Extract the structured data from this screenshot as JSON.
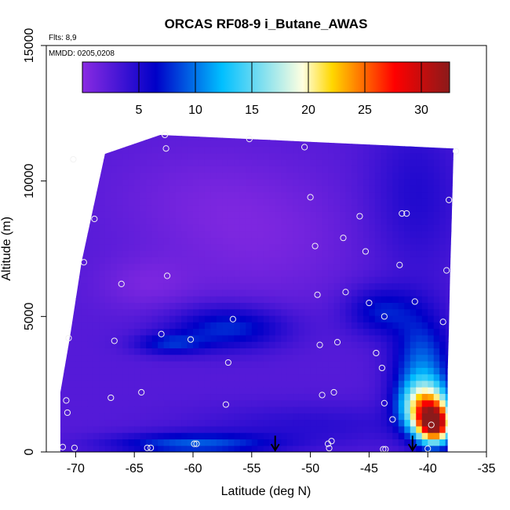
{
  "chart_data": {
    "type": "heatmap",
    "title": "ORCAS RF08-9 i_Butane_AWAS",
    "annotations": {
      "flights": "Flts: 8,9",
      "dates": "MMDD: 0205,0208"
    },
    "xlabel": "Latitude (deg N)",
    "ylabel": "Altitude (m)",
    "xlim": [
      -72.5,
      -35
    ],
    "ylim": [
      0,
      15000
    ],
    "x_ticks": [
      -70,
      -65,
      -60,
      -55,
      -50,
      -45,
      -40,
      -35
    ],
    "x_tick_labels": [
      "-70",
      "-65",
      "-60",
      "-55",
      "-50",
      "-45",
      "-40",
      "-35"
    ],
    "y_ticks": [
      0,
      5000,
      10000,
      15000
    ],
    "y_tick_labels": [
      "0",
      "5000",
      "10000",
      "15000"
    ],
    "colorbar": {
      "range": [
        0,
        32.5
      ],
      "ticks": [
        5,
        10,
        15,
        20,
        25,
        30
      ],
      "tick_labels": [
        "5",
        "10",
        "15",
        "20",
        "25",
        "30"
      ],
      "colors": [
        "#8a2be2",
        "#0000c8",
        "#00bfff",
        "#ffffe0",
        "#ffd700",
        "#ff0000",
        "#8b1a1a"
      ],
      "stops": [
        0,
        0.2,
        0.38,
        0.6,
        0.68,
        0.85,
        1.0
      ]
    },
    "field": {
      "coverage": {
        "top_left": [
          -71.3,
          11700
        ],
        "top_right": [
          -37.8,
          11200
        ],
        "bottom_right": [
          -38.3,
          0
        ],
        "bottom_left": [
          -71.3,
          0
        ],
        "left_edge": [
          [
            -71.3,
            0
          ],
          [
            -71.3,
            2200
          ],
          [
            -70.5,
            4200
          ],
          [
            -69.5,
            7000
          ],
          [
            -68.5,
            9000
          ],
          [
            -67.5,
            11000
          ],
          [
            -62.8,
            11700
          ]
        ],
        "right_edge": [
          [
            -37.8,
            11200
          ],
          [
            -37.9,
            9500
          ],
          [
            -38.1,
            6500
          ],
          [
            -38.2,
            4500
          ],
          [
            -38.3,
            3000
          ],
          [
            -38.3,
            0
          ]
        ]
      },
      "background_value": 2.5,
      "features": [
        {
          "lat": -60,
          "alt": 300,
          "value": 9,
          "lat_width": 7,
          "alt_width": 400
        },
        {
          "lat": -57,
          "alt": 4600,
          "value": 8,
          "lat_width": 5,
          "alt_width": 800
        },
        {
          "lat": -62,
          "alt": 4000,
          "value": 7,
          "lat_width": 3,
          "alt_width": 400
        },
        {
          "lat": -44,
          "alt": 5200,
          "value": 7,
          "lat_width": 3,
          "alt_width": 900
        },
        {
          "lat": -40.5,
          "alt": 3000,
          "value": 10,
          "lat_width": 2.5,
          "alt_width": 2000
        },
        {
          "lat": -40.2,
          "alt": 1700,
          "value": 18,
          "lat_width": 2,
          "alt_width": 900
        },
        {
          "lat": -39.4,
          "alt": 1000,
          "value": 26,
          "lat_width": 1.5,
          "alt_width": 700
        },
        {
          "lat": -54,
          "alt": 7800,
          "value": 1,
          "lat_width": 8,
          "alt_width": 2500
        },
        {
          "lat": -60,
          "alt": 9500,
          "value": 1.5,
          "lat_width": 8,
          "alt_width": 2000
        },
        {
          "lat": -64,
          "alt": 6200,
          "value": 1,
          "lat_width": 4,
          "alt_width": 1000
        },
        {
          "lat": -41,
          "alt": 9500,
          "value": 5,
          "lat_width": 4,
          "alt_width": 3000
        },
        {
          "lat": -50,
          "alt": 1000,
          "value": 4.5,
          "lat_width": 10,
          "alt_width": 800
        }
      ]
    },
    "samples": [
      {
        "lat": -62.4,
        "alt": 11700
      },
      {
        "lat": -55.2,
        "alt": 11550
      },
      {
        "lat": -50.5,
        "alt": 11250
      },
      {
        "lat": -62.3,
        "alt": 11200
      },
      {
        "lat": -70.2,
        "alt": 10800
      },
      {
        "lat": -37.6,
        "alt": 11100
      },
      {
        "lat": -50.0,
        "alt": 9400
      },
      {
        "lat": -38.2,
        "alt": 9300
      },
      {
        "lat": -68.4,
        "alt": 8600
      },
      {
        "lat": -45.8,
        "alt": 8700
      },
      {
        "lat": -41.8,
        "alt": 8800
      },
      {
        "lat": -42.2,
        "alt": 8800
      },
      {
        "lat": -47.2,
        "alt": 7900
      },
      {
        "lat": -49.6,
        "alt": 7600
      },
      {
        "lat": -45.3,
        "alt": 7400
      },
      {
        "lat": -69.3,
        "alt": 7000
      },
      {
        "lat": -42.4,
        "alt": 6900
      },
      {
        "lat": -38.4,
        "alt": 6700
      },
      {
        "lat": -62.2,
        "alt": 6500
      },
      {
        "lat": -66.1,
        "alt": 6200
      },
      {
        "lat": -47.0,
        "alt": 5900
      },
      {
        "lat": -49.4,
        "alt": 5800
      },
      {
        "lat": -45.0,
        "alt": 5500
      },
      {
        "lat": -41.1,
        "alt": 5550
      },
      {
        "lat": -43.7,
        "alt": 5000
      },
      {
        "lat": -56.6,
        "alt": 4900
      },
      {
        "lat": -38.7,
        "alt": 4800
      },
      {
        "lat": -62.7,
        "alt": 4350
      },
      {
        "lat": -70.6,
        "alt": 4200
      },
      {
        "lat": -60.2,
        "alt": 4150
      },
      {
        "lat": -66.7,
        "alt": 4100
      },
      {
        "lat": -47.7,
        "alt": 4050
      },
      {
        "lat": -49.2,
        "alt": 3950
      },
      {
        "lat": -44.4,
        "alt": 3650
      },
      {
        "lat": -57.0,
        "alt": 3300
      },
      {
        "lat": -43.9,
        "alt": 3100
      },
      {
        "lat": -64.4,
        "alt": 2200
      },
      {
        "lat": -48.0,
        "alt": 2200
      },
      {
        "lat": -49.0,
        "alt": 2100
      },
      {
        "lat": -67.0,
        "alt": 2000
      },
      {
        "lat": -70.8,
        "alt": 1900
      },
      {
        "lat": -57.2,
        "alt": 1750
      },
      {
        "lat": -43.7,
        "alt": 1800
      },
      {
        "lat": -70.7,
        "alt": 1450
      },
      {
        "lat": -43.0,
        "alt": 1200
      },
      {
        "lat": -39.7,
        "alt": 1000
      },
      {
        "lat": -48.2,
        "alt": 400
      },
      {
        "lat": -48.5,
        "alt": 300
      },
      {
        "lat": -59.9,
        "alt": 300
      },
      {
        "lat": -59.7,
        "alt": 300
      },
      {
        "lat": -71.1,
        "alt": 180
      },
      {
        "lat": -70.1,
        "alt": 150
      },
      {
        "lat": -63.6,
        "alt": 150
      },
      {
        "lat": -63.9,
        "alt": 150
      },
      {
        "lat": -48.4,
        "alt": 140
      },
      {
        "lat": -43.6,
        "alt": 100
      },
      {
        "lat": -43.8,
        "alt": 100
      },
      {
        "lat": -40.0,
        "alt": 120
      }
    ],
    "arrows": [
      {
        "lat": -53.0,
        "alt_top": 600
      },
      {
        "lat": -41.3,
        "alt_top": 600
      }
    ]
  }
}
